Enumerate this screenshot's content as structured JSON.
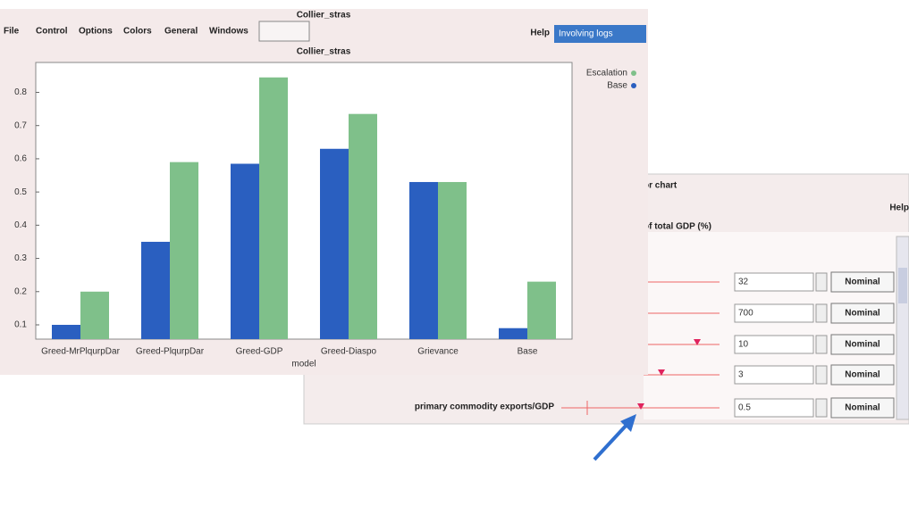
{
  "window": {
    "title": "Collier_stras",
    "menu": [
      "File",
      "Control",
      "Options",
      "Colors",
      "General",
      "Windows",
      "Help"
    ],
    "help": "Help",
    "tab": "Involving logs"
  },
  "chart_data": {
    "type": "bar",
    "title": "Collier_stras",
    "x_label": "model",
    "categories": [
      "Greed-MrPlqurpDar",
      "Greed-PlqurpDar",
      "Greed-GDP",
      "Greed-Diaspo",
      "Grievance",
      "Base"
    ],
    "series": [
      {
        "name": "Base",
        "color": "#2a5fc0",
        "values": [
          0.1,
          0.35,
          0.585,
          0.63,
          0.53,
          0.09
        ]
      },
      {
        "name": "Escalation",
        "color": "#7fc08a",
        "values": [
          0.2,
          0.59,
          0.845,
          0.735,
          0.53,
          0.23
        ]
      }
    ],
    "ylim": [
      0.057,
      0.89
    ],
    "yticks": [
      0.1,
      0.2,
      0.3,
      0.4,
      0.5,
      0.6,
      0.7,
      0.8
    ],
    "legend": "top-right"
  },
  "panel": {
    "title": "or chart",
    "help": "Help",
    "section": "of total GDP (%)",
    "rows": [
      {
        "value": "32",
        "button": "Nominal"
      },
      {
        "value": "700",
        "button": "Nominal"
      },
      {
        "value": "10",
        "button": "Nominal"
      },
      {
        "value": "3",
        "button": "Nominal"
      },
      {
        "value": "0.5",
        "button": "Nominal"
      }
    ],
    "last_label": "primary commodity exports/GDP"
  }
}
